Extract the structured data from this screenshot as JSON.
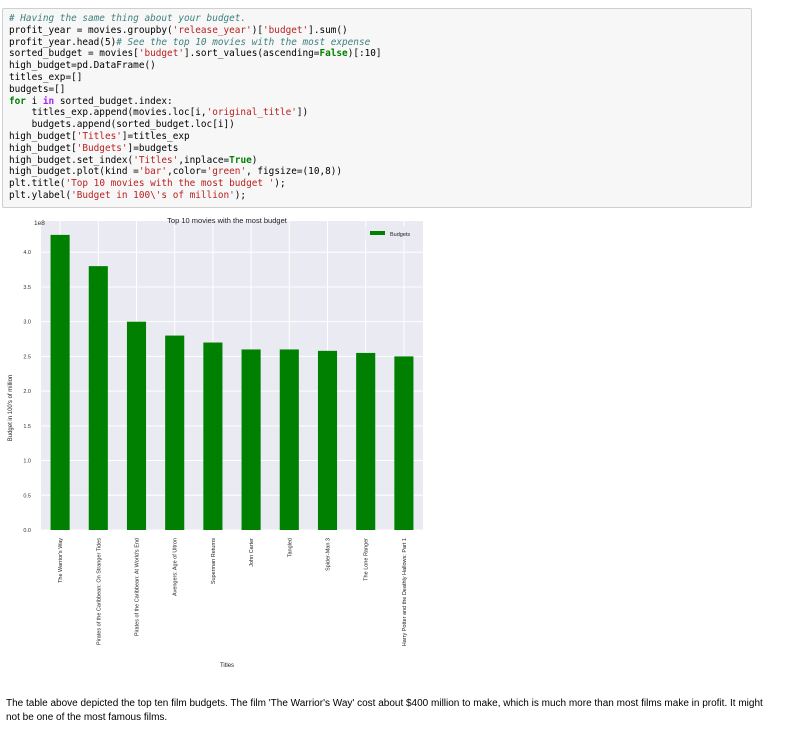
{
  "code_cell": {
    "lines": [
      [
        {
          "t": "# Having the same thing about your budget.",
          "c": "c-comment"
        }
      ],
      [
        {
          "t": "profit_year = movies.groupby("
        },
        {
          "t": "'release_year'",
          "c": "c-str"
        },
        {
          "t": ")["
        },
        {
          "t": "'budget'",
          "c": "c-str"
        },
        {
          "t": "].sum()"
        }
      ],
      [
        {
          "t": "profit_year.head(5)"
        },
        {
          "t": "# See the top 10 movies with the most expense",
          "c": "c-comment"
        }
      ],
      [
        {
          "t": "sorted_budget = movies["
        },
        {
          "t": "'budget'",
          "c": "c-str"
        },
        {
          "t": "].sort_values(ascending="
        },
        {
          "t": "False",
          "c": "c-kw"
        },
        {
          "t": ")[:10]"
        }
      ],
      [
        {
          "t": "high_budget=pd.DataFrame()"
        }
      ],
      [
        {
          "t": "titles_exp=[]"
        }
      ],
      [
        {
          "t": "budgets=[]"
        }
      ],
      [
        {
          "t": "for",
          "c": "c-kw"
        },
        {
          "t": " i "
        },
        {
          "t": "in",
          "c": "c-op"
        },
        {
          "t": " sorted_budget.index:"
        }
      ],
      [
        {
          "t": "    titles_exp.append(movies.loc[i,"
        },
        {
          "t": "'original_title'",
          "c": "c-str"
        },
        {
          "t": "])"
        }
      ],
      [
        {
          "t": "    budgets.append(sorted_budget.loc[i])"
        }
      ],
      [
        {
          "t": "high_budget["
        },
        {
          "t": "'Titles'",
          "c": "c-str"
        },
        {
          "t": "]=titles_exp"
        }
      ],
      [
        {
          "t": "high_budget["
        },
        {
          "t": "'Budgets'",
          "c": "c-str"
        },
        {
          "t": "]=budgets"
        }
      ],
      [
        {
          "t": "high_budget.set_index("
        },
        {
          "t": "'Titles'",
          "c": "c-str"
        },
        {
          "t": ",inplace="
        },
        {
          "t": "True",
          "c": "c-kw"
        },
        {
          "t": ")"
        }
      ],
      [
        {
          "t": "high_budget.plot(kind ="
        },
        {
          "t": "'bar'",
          "c": "c-str"
        },
        {
          "t": ",color="
        },
        {
          "t": "'green'",
          "c": "c-str"
        },
        {
          "t": ", figsize=(10,8))"
        }
      ],
      [
        {
          "t": "plt.title("
        },
        {
          "t": "'Top 10 movies with the most budget '",
          "c": "c-str"
        },
        {
          "t": ");"
        }
      ],
      [
        {
          "t": "plt.ylabel("
        },
        {
          "t": "'Budget in 100\\'s of million'",
          "c": "c-str"
        },
        {
          "t": ");"
        }
      ]
    ]
  },
  "chart_data": {
    "type": "bar",
    "title": "Top 10 movies with the most budget",
    "xlabel": "Titles",
    "ylabel": "Budget in 100's of million",
    "y_offset_label": "1e8",
    "ylim": [
      0,
      4.45
    ],
    "yticks": [
      0.0,
      0.5,
      1.0,
      1.5,
      2.0,
      2.5,
      3.0,
      3.5,
      4.0
    ],
    "ytick_labels": [
      "0.0",
      "0.5",
      "1.0",
      "1.5",
      "2.0",
      "2.5",
      "3.0",
      "3.5",
      "4.0"
    ],
    "grid": true,
    "legend_position": "top-right",
    "colors": {
      "bar": "#008000",
      "plot_bg": "#eaeaf2",
      "grid": "#ffffff"
    },
    "categories": [
      "The Warrior's Way",
      "Pirates of the Caribbean: On Stranger Tides",
      "Pirates of the Caribbean: At World's End",
      "Avengers: Age of Ultron",
      "Superman Returns",
      "John Carter",
      "Tangled",
      "Spider-Man 3",
      "The Lone Ranger",
      "Harry Potter and the Deathly Hallows: Part 1"
    ],
    "series": [
      {
        "name": "Budgets",
        "values": [
          4.25,
          3.8,
          3.0,
          2.8,
          2.7,
          2.6,
          2.6,
          2.58,
          2.55,
          2.5
        ]
      }
    ]
  },
  "prose": {
    "text": "The table above depicted the top ten film budgets. The film 'The Warrior's Way' cost about $400 million to make, which is much more than most films make in profit. It might not be one of the most famous films."
  }
}
